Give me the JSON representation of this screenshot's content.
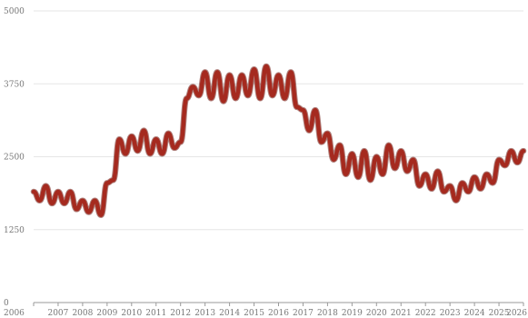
{
  "chart_data": {
    "type": "line",
    "title": "",
    "xlabel": "",
    "ylabel": "",
    "xlim": [
      2006,
      2026
    ],
    "ylim": [
      0,
      5000
    ],
    "grid": true,
    "legend": "none",
    "x_ticks": [
      "2006",
      "2007",
      "2008",
      "2009",
      "2010",
      "2011",
      "2012",
      "2013",
      "2014",
      "2015",
      "2016",
      "2017",
      "2018",
      "2019",
      "2020",
      "2021",
      "2022",
      "2023",
      "2024",
      "2025",
      "2026"
    ],
    "y_ticks": [
      "0",
      "1250",
      "2500",
      "3750",
      "5000"
    ],
    "colors": {
      "line": "#a52a1f",
      "grid": "#e6e6e6",
      "axis": "#9a9a9a"
    },
    "series": [
      {
        "x": [
          2006.0,
          2006.25,
          2006.5,
          2006.75,
          2007.0,
          2007.25,
          2007.5,
          2007.75,
          2008.0,
          2008.25,
          2008.5,
          2008.75,
          2009.0,
          2009.25,
          2009.5,
          2009.75,
          2010.0,
          2010.25,
          2010.5,
          2010.75,
          2011.0,
          2011.25,
          2011.5,
          2011.75,
          2012.0,
          2012.25,
          2012.5,
          2012.75,
          2013.0,
          2013.25,
          2013.5,
          2013.75,
          2014.0,
          2014.25,
          2014.5,
          2014.75,
          2015.0,
          2015.25,
          2015.5,
          2015.75,
          2016.0,
          2016.25,
          2016.5,
          2016.75,
          2017.0,
          2017.25,
          2017.5,
          2017.75,
          2018.0,
          2018.25,
          2018.5,
          2018.75,
          2019.0,
          2019.25,
          2019.5,
          2019.75,
          2020.0,
          2020.25,
          2020.5,
          2020.75,
          2021.0,
          2021.25,
          2021.5,
          2021.75,
          2022.0,
          2022.25,
          2022.5,
          2022.75,
          2023.0,
          2023.25,
          2023.5,
          2023.75,
          2024.0,
          2024.25,
          2024.5,
          2024.75,
          2025.0,
          2025.25,
          2025.5,
          2025.75,
          2026.0
        ],
        "values": [
          1900,
          1750,
          2000,
          1700,
          1900,
          1700,
          1900,
          1600,
          1750,
          1550,
          1750,
          1500,
          2050,
          2100,
          2800,
          2550,
          2850,
          2600,
          2950,
          2550,
          2800,
          2550,
          2900,
          2650,
          2750,
          3500,
          3700,
          3550,
          3950,
          3500,
          3950,
          3450,
          3900,
          3500,
          3900,
          3550,
          4000,
          3500,
          4050,
          3550,
          3900,
          3500,
          3950,
          3350,
          3300,
          2950,
          3300,
          2750,
          2900,
          2450,
          2700,
          2200,
          2550,
          2150,
          2600,
          2100,
          2500,
          2200,
          2700,
          2300,
          2600,
          2250,
          2450,
          2000,
          2200,
          1950,
          2250,
          1900,
          2000,
          1750,
          2050,
          1900,
          2150,
          1950,
          2200,
          2050,
          2450,
          2350,
          2600,
          2400,
          2600
        ]
      }
    ]
  }
}
